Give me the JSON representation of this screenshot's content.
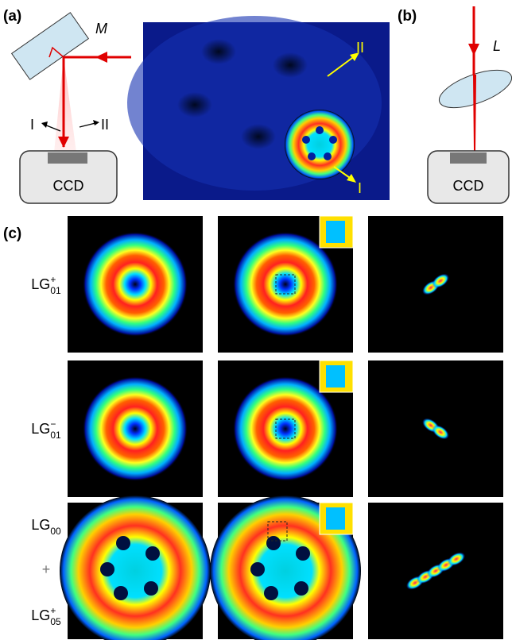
{
  "panel_a": {
    "label": "(a)",
    "mirror": "M",
    "arrow_left": "I",
    "arrow_right": "II",
    "detector": "CCD"
  },
  "camera_image": {
    "label_top": "II",
    "label_bottom": "I"
  },
  "panel_b": {
    "label": "(b)",
    "lens": "L",
    "detector": "CCD"
  },
  "panel_c": {
    "label": "(c)",
    "rows": [
      {
        "labels": [
          {
            "base": "LG",
            "sub": "01",
            "sup": "+"
          }
        ]
      },
      {
        "labels": [
          {
            "base": "LG",
            "sub": "01",
            "sup": "−"
          }
        ]
      },
      {
        "labels": [
          {
            "base": "LG",
            "sub": "00",
            "sup": null
          },
          {
            "base": "+",
            "sub": null,
            "sup": null
          },
          {
            "base": "LG",
            "sub": "05",
            "sup": "+"
          }
        ]
      }
    ]
  }
}
